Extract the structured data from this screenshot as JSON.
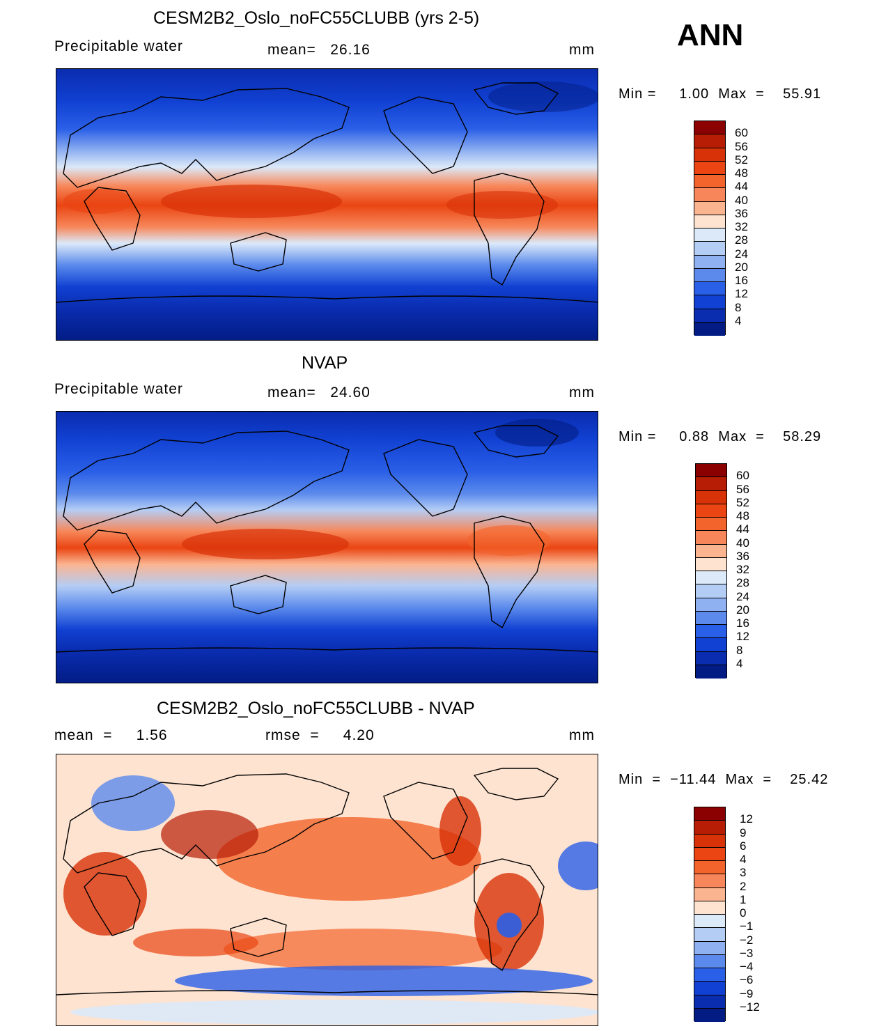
{
  "season": "ANN",
  "panels": [
    {
      "title": "CESM2B2_Oslo_noFC55CLUBB (yrs 2-5)",
      "variable": "Precipitable water",
      "stat1": "mean=   26.16",
      "stat2": "",
      "units": "mm",
      "minmax": "Min =     1.00  Max  =    55.91",
      "colorbar": {
        "labels": [
          "60",
          "56",
          "52",
          "48",
          "44",
          "40",
          "36",
          "32",
          "28",
          "24",
          "20",
          "16",
          "12",
          "8",
          "4"
        ],
        "colors": [
          "#8b0000",
          "#b71c05",
          "#d83208",
          "#ea4512",
          "#f3642c",
          "#f7875a",
          "#fbb490",
          "#fde3d0",
          "#dce9f9",
          "#b4cdf5",
          "#8fb0f1",
          "#5b8aec",
          "#2a5fe7",
          "#1141d2",
          "#0a2caf",
          "#021c84"
        ]
      }
    },
    {
      "title": "NVAP",
      "variable": "Precipitable water",
      "stat1": "mean=   24.60",
      "stat2": "",
      "units": "mm",
      "minmax": "Min =     0.88  Max  =    58.29",
      "colorbar": {
        "labels": [
          "60",
          "56",
          "52",
          "48",
          "44",
          "40",
          "36",
          "32",
          "28",
          "24",
          "20",
          "16",
          "12",
          "8",
          "4"
        ],
        "colors": [
          "#8b0000",
          "#b71c05",
          "#d83208",
          "#ea4512",
          "#f3642c",
          "#f7875a",
          "#fbb490",
          "#fde3d0",
          "#dce9f9",
          "#b4cdf5",
          "#8fb0f1",
          "#5b8aec",
          "#2a5fe7",
          "#1141d2",
          "#0a2caf",
          "#021c84"
        ]
      }
    },
    {
      "title": "CESM2B2_Oslo_noFC55CLUBB - NVAP",
      "variable": "",
      "stat1": "mean  =     1.56",
      "stat2": "rmse  =     4.20",
      "units": "mm",
      "minmax": "Min  =  −11.44  Max  =    25.42",
      "colorbar": {
        "labels": [
          "12",
          "9",
          "6",
          "4",
          "3",
          "2",
          "1",
          "0",
          "−1",
          "−2",
          "−3",
          "−4",
          "−6",
          "−9",
          "−12"
        ],
        "colors": [
          "#8b0000",
          "#b71c05",
          "#d83208",
          "#ea4512",
          "#f3642c",
          "#f7875a",
          "#fbb490",
          "#fde3d0",
          "#dce9f9",
          "#b4cdf5",
          "#8fb0f1",
          "#5b8aec",
          "#2a5fe7",
          "#1141d2",
          "#0a2caf",
          "#021c84"
        ]
      }
    }
  ]
}
